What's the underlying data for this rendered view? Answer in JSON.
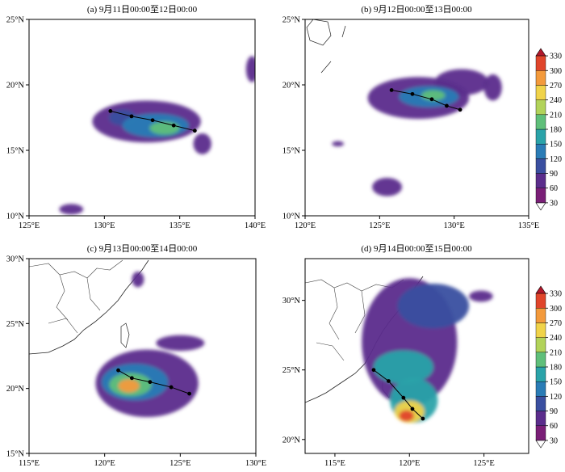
{
  "figure": {
    "colorbar": {
      "levels": [
        30,
        60,
        90,
        120,
        150,
        180,
        210,
        240,
        270,
        300,
        330
      ],
      "tick_labels": [
        "30",
        "60",
        "90",
        "120",
        "150",
        "180",
        "210",
        "240",
        "270",
        "300",
        "330"
      ],
      "colors": [
        "#ffffff",
        "#7a1f77",
        "#5b2d8c",
        "#3a4fa0",
        "#2a7cb6",
        "#2aa3a9",
        "#5fbf7a",
        "#b2d35a",
        "#f0d34a",
        "#f39a3c",
        "#e0452b",
        "#b2182b"
      ]
    }
  },
  "chart_data": [
    {
      "type": "heatmap",
      "title": "(a) 9月11日00:00至12日00:00",
      "xlim": [
        125,
        140
      ],
      "ylim": [
        10,
        25
      ],
      "x_ticks": [
        125,
        130,
        135,
        140
      ],
      "y_ticks": [
        10,
        15,
        20,
        25
      ],
      "x_tick_labels": [
        "125°E",
        "130°E",
        "135°E",
        "140°E"
      ],
      "y_tick_labels": [
        "10°N",
        "15°N",
        "20°N",
        "25°N"
      ],
      "track": [
        [
          130.4,
          18.0
        ],
        [
          131.8,
          17.6
        ],
        [
          133.2,
          17.3
        ],
        [
          134.6,
          16.9
        ],
        [
          136.0,
          16.5
        ]
      ],
      "precip_cells": [
        {
          "lon": 132.8,
          "lat": 17.2,
          "rx": 3.6,
          "ry": 1.6,
          "value": 60
        },
        {
          "lon": 133.4,
          "lat": 16.9,
          "rx": 2.2,
          "ry": 0.9,
          "value": 120
        },
        {
          "lon": 134.0,
          "lat": 16.7,
          "rx": 1.0,
          "ry": 0.5,
          "value": 180
        },
        {
          "lon": 131.2,
          "lat": 17.5,
          "rx": 0.9,
          "ry": 0.6,
          "value": 90
        },
        {
          "lon": 127.8,
          "lat": 10.5,
          "rx": 0.8,
          "ry": 0.4,
          "value": 60
        },
        {
          "lon": 139.8,
          "lat": 21.2,
          "rx": 0.4,
          "ry": 1.0,
          "value": 60
        },
        {
          "lon": 136.5,
          "lat": 15.5,
          "rx": 0.6,
          "ry": 0.8,
          "value": 60
        }
      ]
    },
    {
      "type": "heatmap",
      "title": "(b) 9月12日00:00至13日00:00",
      "xlim": [
        120,
        135
      ],
      "ylim": [
        10,
        25
      ],
      "x_ticks": [
        120,
        125,
        130,
        135
      ],
      "y_ticks": [
        10,
        15,
        20,
        25
      ],
      "x_tick_labels": [
        "120°E",
        "125°E",
        "130°E",
        "135°E"
      ],
      "y_tick_labels": [
        "10°N",
        "15°N",
        "20°N",
        "25°N"
      ],
      "track": [
        [
          125.8,
          19.6
        ],
        [
          127.2,
          19.3
        ],
        [
          128.5,
          18.9
        ],
        [
          129.5,
          18.4
        ],
        [
          130.4,
          18.1
        ]
      ],
      "precip_cells": [
        {
          "lon": 127.6,
          "lat": 19.0,
          "rx": 3.4,
          "ry": 1.6,
          "value": 60
        },
        {
          "lon": 128.3,
          "lat": 19.1,
          "rx": 2.0,
          "ry": 0.8,
          "value": 120
        },
        {
          "lon": 128.6,
          "lat": 19.2,
          "rx": 0.8,
          "ry": 0.4,
          "value": 180
        },
        {
          "lon": 130.5,
          "lat": 20.2,
          "rx": 1.8,
          "ry": 1.0,
          "value": 60
        },
        {
          "lon": 125.5,
          "lat": 12.2,
          "rx": 1.0,
          "ry": 0.7,
          "value": 60
        },
        {
          "lon": 122.2,
          "lat": 15.5,
          "rx": 0.4,
          "ry": 0.2,
          "value": 60
        },
        {
          "lon": 132.6,
          "lat": 19.8,
          "rx": 0.6,
          "ry": 1.0,
          "value": 60
        }
      ]
    },
    {
      "type": "heatmap",
      "title": "(c) 9月13日00:00至14日00:00",
      "xlim": [
        115,
        130
      ],
      "ylim": [
        15,
        30
      ],
      "x_ticks": [
        115,
        120,
        125,
        130
      ],
      "y_ticks": [
        15,
        20,
        25,
        30
      ],
      "x_tick_labels": [
        "115°E",
        "120°E",
        "125°E",
        "130°E"
      ],
      "y_tick_labels": [
        "15°N",
        "20°N",
        "25°N",
        "30°N"
      ],
      "track": [
        [
          120.9,
          21.4
        ],
        [
          121.8,
          20.8
        ],
        [
          123.0,
          20.5
        ],
        [
          124.4,
          20.1
        ],
        [
          125.6,
          19.6
        ]
      ],
      "precip_cells": [
        {
          "lon": 122.8,
          "lat": 20.4,
          "rx": 3.4,
          "ry": 2.6,
          "value": 60
        },
        {
          "lon": 122.0,
          "lat": 20.5,
          "rx": 2.2,
          "ry": 1.4,
          "value": 120
        },
        {
          "lon": 121.7,
          "lat": 20.3,
          "rx": 1.4,
          "ry": 0.9,
          "value": 180
        },
        {
          "lon": 121.6,
          "lat": 20.2,
          "rx": 0.7,
          "ry": 0.5,
          "value": 270
        },
        {
          "lon": 125.0,
          "lat": 23.5,
          "rx": 1.6,
          "ry": 0.6,
          "value": 60
        },
        {
          "lon": 122.2,
          "lat": 28.4,
          "rx": 0.4,
          "ry": 0.6,
          "value": 60
        }
      ]
    },
    {
      "type": "heatmap",
      "title": "(d) 9月14日00:00至15日00:00",
      "xlim": [
        113,
        128
      ],
      "ylim": [
        19,
        33
      ],
      "x_ticks": [
        115,
        120,
        125
      ],
      "y_ticks": [
        20,
        25,
        30
      ],
      "x_tick_labels": [
        "115°E",
        "120°E",
        "125°E"
      ],
      "y_tick_labels": [
        "20°N",
        "25°N",
        "30°N"
      ],
      "track": [
        [
          117.6,
          25.0
        ],
        [
          118.6,
          24.2
        ],
        [
          119.6,
          23.0
        ],
        [
          120.2,
          22.2
        ],
        [
          120.9,
          21.5
        ]
      ],
      "precip_cells": [
        {
          "lon": 120.0,
          "lat": 27.0,
          "rx": 3.2,
          "ry": 4.6,
          "value": 60
        },
        {
          "lon": 121.6,
          "lat": 29.6,
          "rx": 2.4,
          "ry": 1.6,
          "value": 90
        },
        {
          "lon": 119.6,
          "lat": 25.2,
          "rx": 2.0,
          "ry": 1.2,
          "value": 150
        },
        {
          "lon": 120.3,
          "lat": 22.8,
          "rx": 1.6,
          "ry": 1.6,
          "value": 150
        },
        {
          "lon": 120.0,
          "lat": 22.0,
          "rx": 1.0,
          "ry": 0.8,
          "value": 240
        },
        {
          "lon": 119.8,
          "lat": 21.7,
          "rx": 0.5,
          "ry": 0.4,
          "value": 300
        },
        {
          "lon": 124.8,
          "lat": 30.3,
          "rx": 0.8,
          "ry": 0.4,
          "value": 60
        }
      ]
    }
  ]
}
